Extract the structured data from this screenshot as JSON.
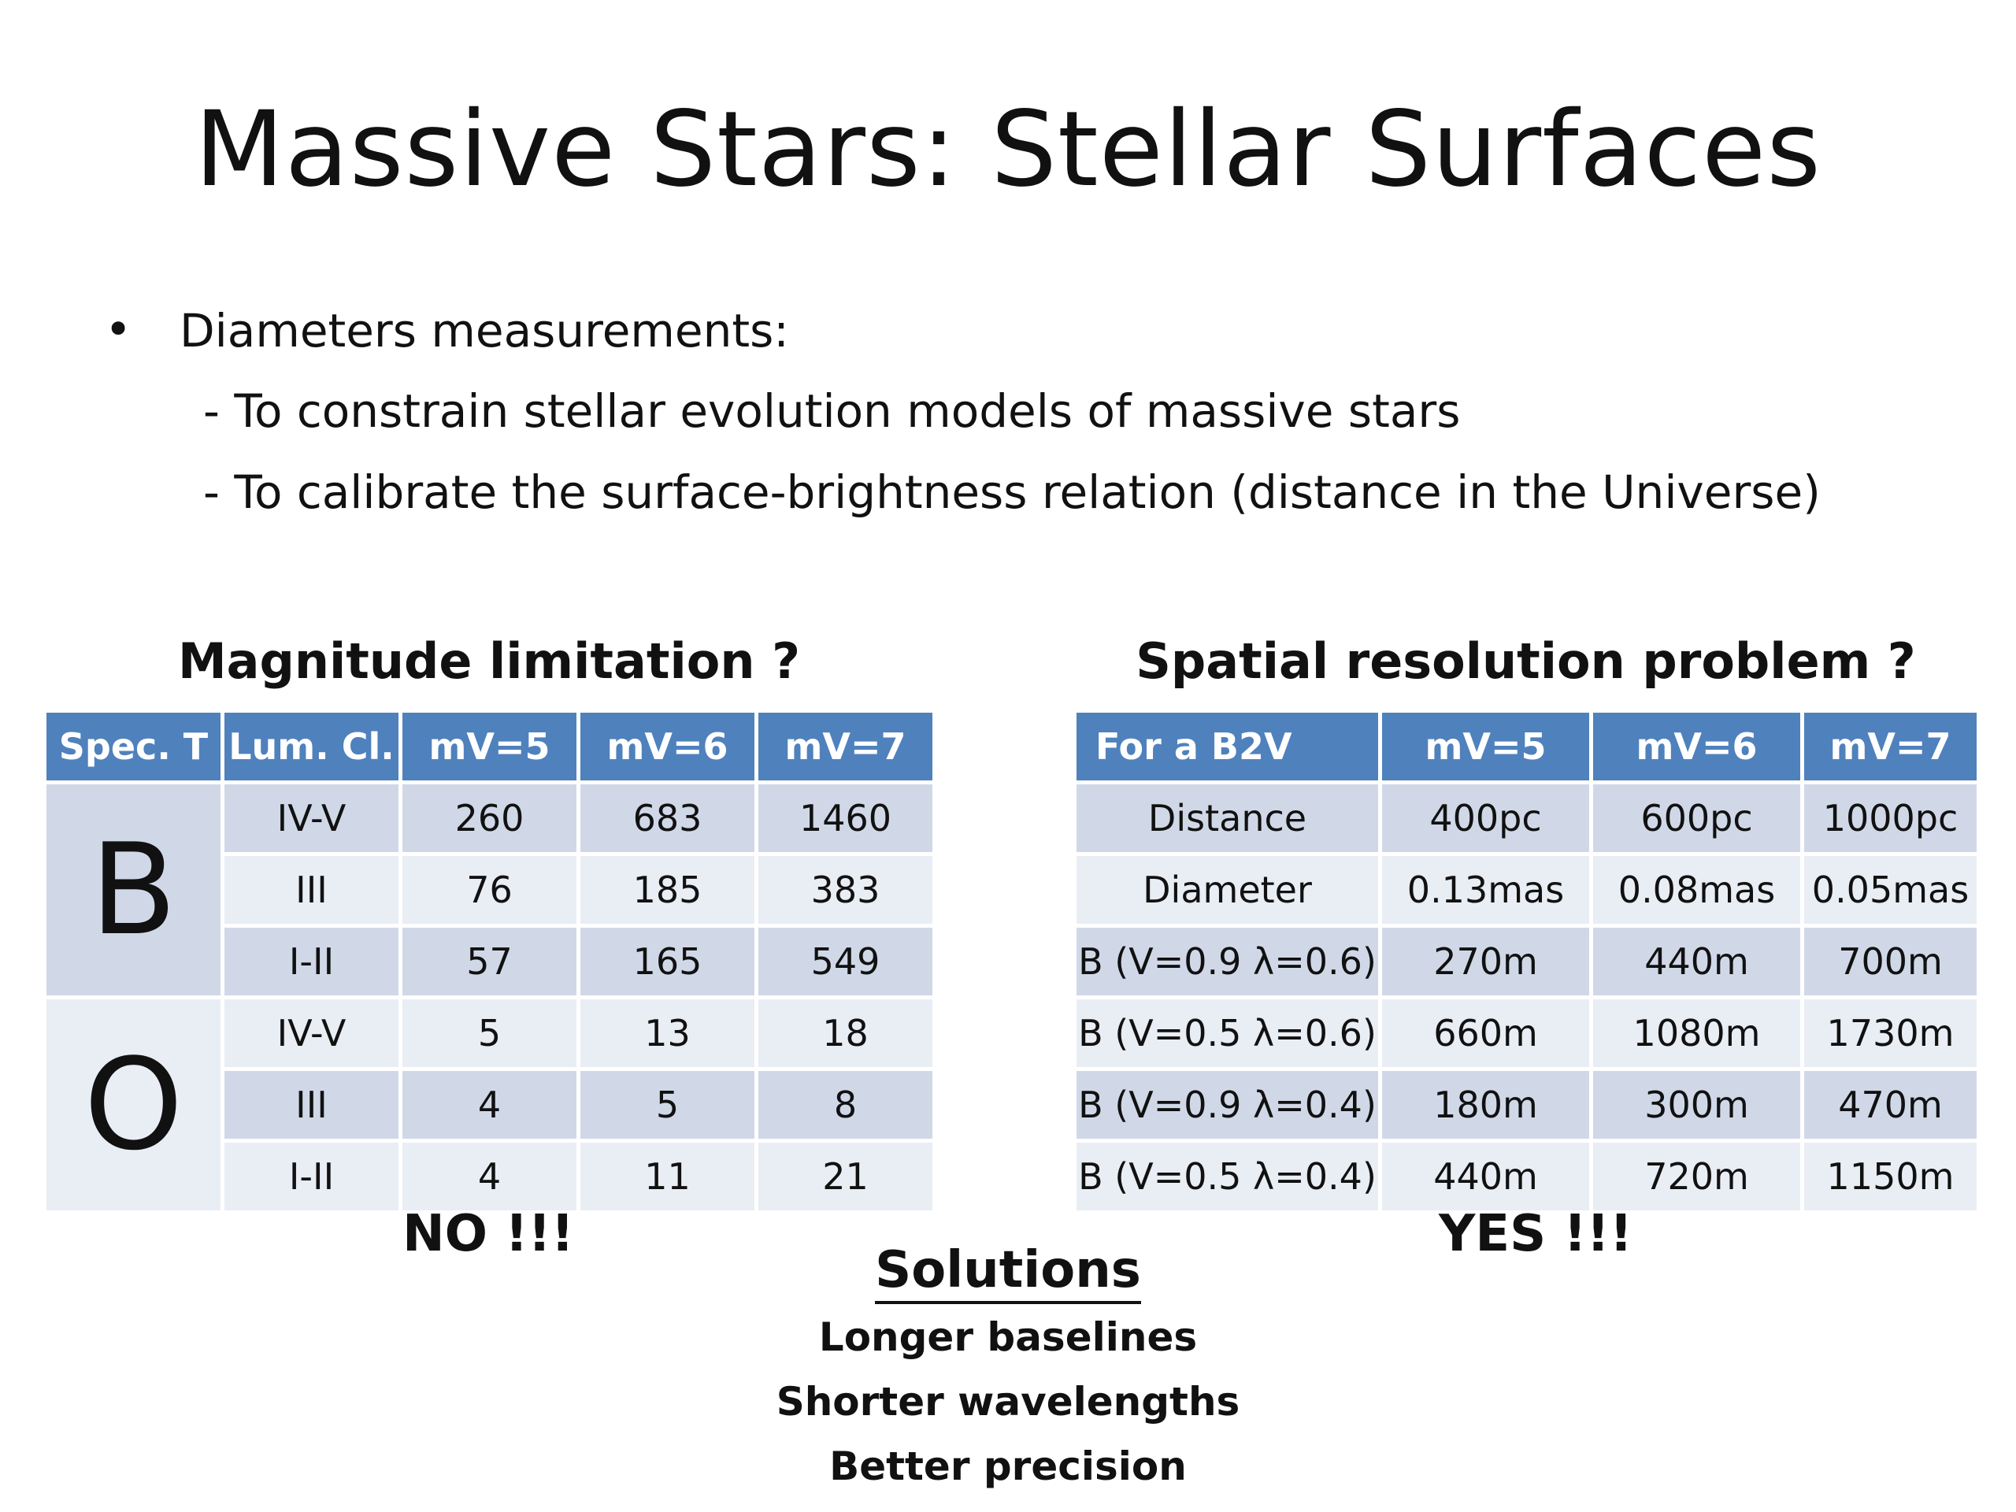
{
  "title": "Massive Stars: Stellar Surfaces",
  "bullet": {
    "symbol": "•",
    "text": "Diameters measurements:",
    "subitems": [
      "- To constrain stellar evolution models of massive stars",
      "- To calibrate the surface-brightness relation (distance in the Universe)"
    ]
  },
  "left_table": {
    "heading": "Magnitude limitation ?",
    "headers": [
      "Spec. T",
      "Lum. Cl.",
      "mV=5",
      "mV=6",
      "mV=7"
    ],
    "groups": [
      {
        "spec": "B",
        "rows": [
          {
            "lum": "IV-V",
            "v5": "260",
            "v6": "683",
            "v7": "1460"
          },
          {
            "lum": "III",
            "v5": "76",
            "v6": "185",
            "v7": "383"
          },
          {
            "lum": "I-II",
            "v5": "57",
            "v6": "165",
            "v7": "549"
          }
        ]
      },
      {
        "spec": "O",
        "rows": [
          {
            "lum": "IV-V",
            "v5": "5",
            "v6": "13",
            "v7": "18"
          },
          {
            "lum": "III",
            "v5": "4",
            "v6": "5",
            "v7": "8"
          },
          {
            "lum": "I-II",
            "v5": "4",
            "v6": "11",
            "v7": "21"
          }
        ]
      }
    ],
    "verdict": "NO !!!"
  },
  "right_table": {
    "heading": "Spatial resolution problem ?",
    "headers": [
      "For a B2V",
      "mV=5",
      "mV=6",
      "mV=7"
    ],
    "rows": [
      {
        "label": "Distance",
        "v5": "400pc",
        "v6": "600pc",
        "v7": "1000pc"
      },
      {
        "label": "Diameter",
        "v5": "0.13mas",
        "v6": "0.08mas",
        "v7": "0.05mas"
      },
      {
        "label": "B (V=0.9  λ=0.6)",
        "v5": "270m",
        "v6": "440m",
        "v7": "700m"
      },
      {
        "label": "B (V=0.5 λ=0.6)",
        "v5": "660m",
        "v6": "1080m",
        "v7": "1730m"
      },
      {
        "label": "B (V=0.9  λ=0.4)",
        "v5": "180m",
        "v6": "300m",
        "v7": "470m"
      },
      {
        "label": "B (V=0.5  λ=0.4)",
        "v5": "440m",
        "v6": "720m",
        "v7": "1150m"
      }
    ],
    "verdict": "YES !!!"
  },
  "solutions": {
    "heading": "Solutions",
    "items": [
      "Longer baselines",
      "Shorter wavelengths",
      "Better precision"
    ]
  },
  "colors": {
    "header_bg": "#4f81bd",
    "row_dark": "#d0d8e8",
    "row_light": "#e9edf4"
  }
}
